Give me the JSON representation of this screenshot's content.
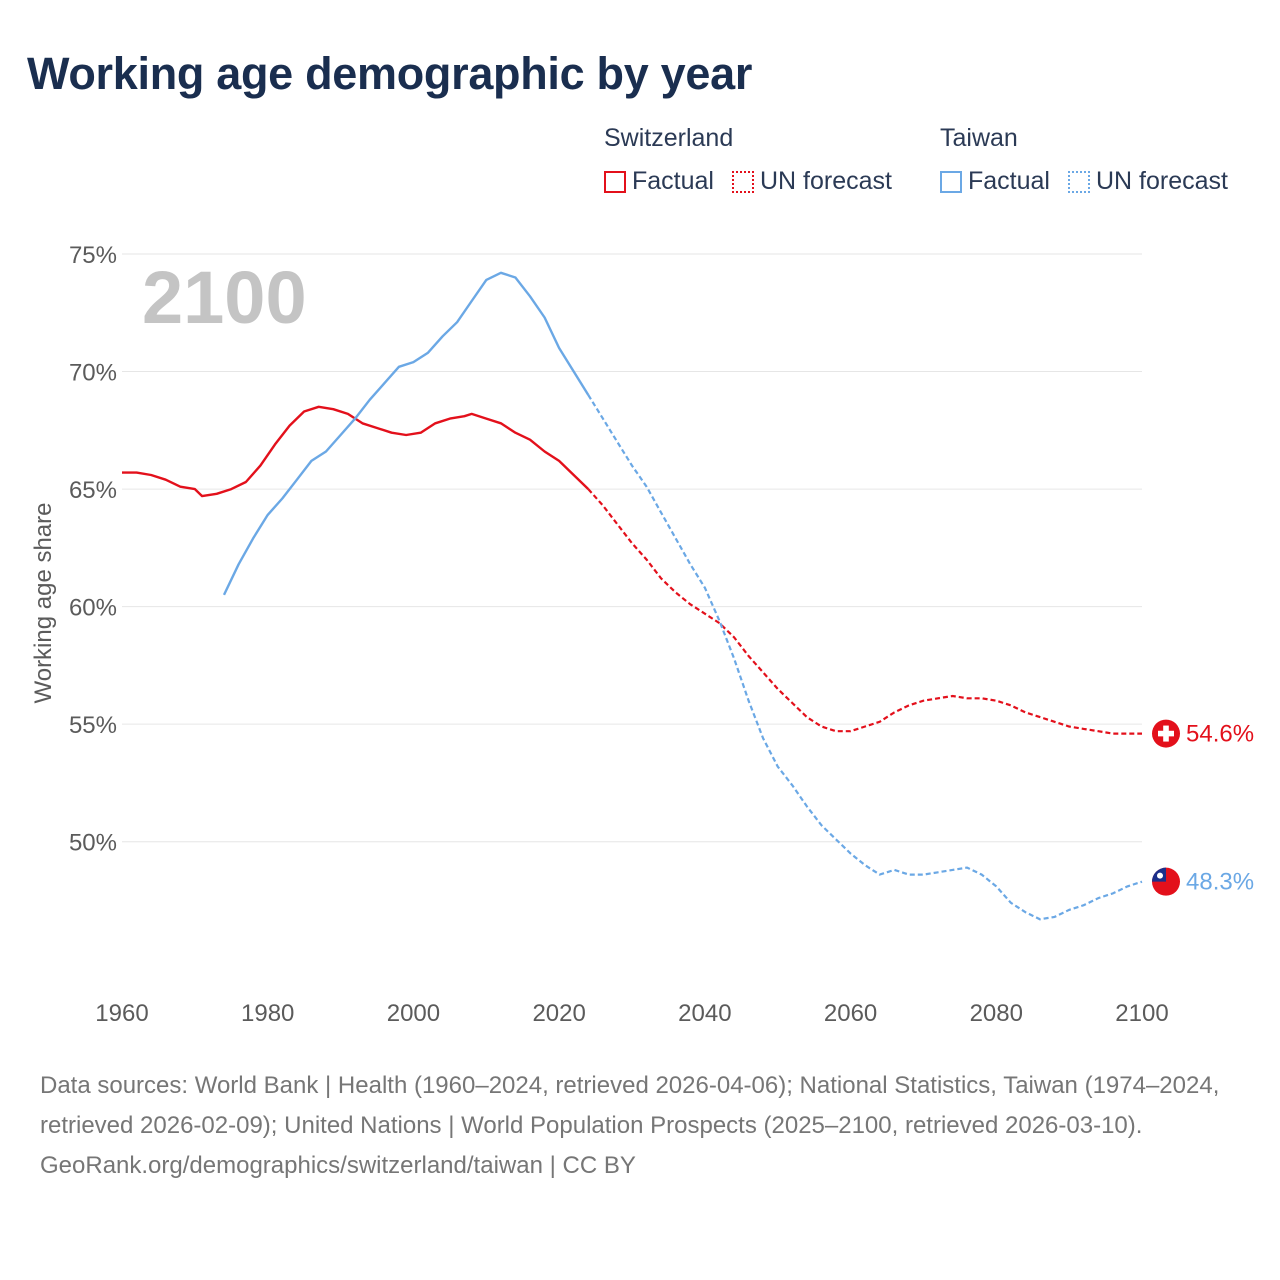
{
  "title": "Working age demographic by year",
  "legend": {
    "switzerland": {
      "title": "Switzerland",
      "factual": "Factual",
      "forecast": "UN forecast"
    },
    "taiwan": {
      "title": "Taiwan",
      "factual": "Factual",
      "forecast": "UN forecast"
    }
  },
  "colors": {
    "switzerland": "#e3101b",
    "taiwan": "#6ba8e5",
    "grid": "#e6e6e6",
    "year": "#c4c4c4"
  },
  "chart_data": {
    "type": "line",
    "title": "Working age demographic by year",
    "year_label": "2100",
    "xlabel": "",
    "ylabel": "Working age share",
    "xlim": [
      1960,
      2100
    ],
    "ylim": [
      44.5,
      75
    ],
    "x_ticks": [
      "1960",
      "1980",
      "2000",
      "2020",
      "2040",
      "2060",
      "2080",
      "2100"
    ],
    "y_ticks": [
      "75%",
      "70%",
      "65%",
      "60%",
      "55%",
      "50%"
    ],
    "y_tick_values": [
      75,
      70,
      65,
      60,
      55,
      50
    ],
    "x_tick_values": [
      1960,
      1980,
      2000,
      2020,
      2040,
      2060,
      2080,
      2100
    ],
    "series": [
      {
        "name": "Switzerland",
        "factual": [
          [
            1960,
            65.7
          ],
          [
            1962,
            65.7
          ],
          [
            1964,
            65.6
          ],
          [
            1966,
            65.4
          ],
          [
            1968,
            65.1
          ],
          [
            1970,
            65.0
          ],
          [
            1971,
            64.7
          ],
          [
            1973,
            64.8
          ],
          [
            1975,
            65.0
          ],
          [
            1977,
            65.3
          ],
          [
            1979,
            66.0
          ],
          [
            1981,
            66.9
          ],
          [
            1983,
            67.7
          ],
          [
            1985,
            68.3
          ],
          [
            1987,
            68.5
          ],
          [
            1989,
            68.4
          ],
          [
            1991,
            68.2
          ],
          [
            1993,
            67.8
          ],
          [
            1995,
            67.6
          ],
          [
            1997,
            67.4
          ],
          [
            1999,
            67.3
          ],
          [
            2001,
            67.4
          ],
          [
            2003,
            67.8
          ],
          [
            2005,
            68.0
          ],
          [
            2007,
            68.1
          ],
          [
            2008,
            68.2
          ],
          [
            2010,
            68.0
          ],
          [
            2012,
            67.8
          ],
          [
            2014,
            67.4
          ],
          [
            2016,
            67.1
          ],
          [
            2018,
            66.6
          ],
          [
            2020,
            66.2
          ],
          [
            2022,
            65.6
          ],
          [
            2024,
            65.0
          ]
        ],
        "forecast": [
          [
            2024,
            65.0
          ],
          [
            2026,
            64.3
          ],
          [
            2028,
            63.5
          ],
          [
            2030,
            62.7
          ],
          [
            2032,
            62.0
          ],
          [
            2034,
            61.2
          ],
          [
            2036,
            60.6
          ],
          [
            2038,
            60.1
          ],
          [
            2040,
            59.7
          ],
          [
            2042,
            59.3
          ],
          [
            2044,
            58.7
          ],
          [
            2046,
            57.9
          ],
          [
            2048,
            57.2
          ],
          [
            2050,
            56.5
          ],
          [
            2052,
            55.9
          ],
          [
            2054,
            55.3
          ],
          [
            2056,
            54.9
          ],
          [
            2058,
            54.7
          ],
          [
            2060,
            54.7
          ],
          [
            2062,
            54.9
          ],
          [
            2064,
            55.1
          ],
          [
            2066,
            55.5
          ],
          [
            2068,
            55.8
          ],
          [
            2070,
            56.0
          ],
          [
            2072,
            56.1
          ],
          [
            2074,
            56.2
          ],
          [
            2076,
            56.1
          ],
          [
            2078,
            56.1
          ],
          [
            2080,
            56.0
          ],
          [
            2082,
            55.8
          ],
          [
            2084,
            55.5
          ],
          [
            2086,
            55.3
          ],
          [
            2088,
            55.1
          ],
          [
            2090,
            54.9
          ],
          [
            2092,
            54.8
          ],
          [
            2094,
            54.7
          ],
          [
            2096,
            54.6
          ],
          [
            2098,
            54.6
          ],
          [
            2100,
            54.6
          ]
        ],
        "end_value": 54.6,
        "end_label": "54.6%"
      },
      {
        "name": "Taiwan",
        "factual": [
          [
            1974,
            60.5
          ],
          [
            1976,
            61.8
          ],
          [
            1978,
            62.9
          ],
          [
            1980,
            63.9
          ],
          [
            1982,
            64.6
          ],
          [
            1984,
            65.4
          ],
          [
            1986,
            66.2
          ],
          [
            1988,
            66.6
          ],
          [
            1990,
            67.3
          ],
          [
            1992,
            68.0
          ],
          [
            1994,
            68.8
          ],
          [
            1996,
            69.5
          ],
          [
            1998,
            70.2
          ],
          [
            2000,
            70.4
          ],
          [
            2002,
            70.8
          ],
          [
            2004,
            71.5
          ],
          [
            2006,
            72.1
          ],
          [
            2008,
            73.0
          ],
          [
            2010,
            73.9
          ],
          [
            2012,
            74.2
          ],
          [
            2014,
            74.0
          ],
          [
            2016,
            73.2
          ],
          [
            2018,
            72.3
          ],
          [
            2020,
            71.0
          ],
          [
            2022,
            70.0
          ],
          [
            2024,
            69.0
          ]
        ],
        "forecast": [
          [
            2024,
            69.0
          ],
          [
            2026,
            68.0
          ],
          [
            2028,
            67.0
          ],
          [
            2030,
            66.0
          ],
          [
            2032,
            65.1
          ],
          [
            2034,
            64.0
          ],
          [
            2036,
            62.9
          ],
          [
            2038,
            61.8
          ],
          [
            2040,
            60.8
          ],
          [
            2042,
            59.4
          ],
          [
            2044,
            57.8
          ],
          [
            2046,
            56.0
          ],
          [
            2048,
            54.4
          ],
          [
            2050,
            53.2
          ],
          [
            2052,
            52.4
          ],
          [
            2054,
            51.5
          ],
          [
            2056,
            50.7
          ],
          [
            2058,
            50.1
          ],
          [
            2060,
            49.5
          ],
          [
            2062,
            49.0
          ],
          [
            2064,
            48.6
          ],
          [
            2066,
            48.8
          ],
          [
            2068,
            48.6
          ],
          [
            2070,
            48.6
          ],
          [
            2072,
            48.7
          ],
          [
            2074,
            48.8
          ],
          [
            2076,
            48.9
          ],
          [
            2078,
            48.6
          ],
          [
            2080,
            48.1
          ],
          [
            2082,
            47.4
          ],
          [
            2084,
            47.0
          ],
          [
            2086,
            46.7
          ],
          [
            2088,
            46.8
          ],
          [
            2090,
            47.1
          ],
          [
            2092,
            47.3
          ],
          [
            2094,
            47.6
          ],
          [
            2096,
            47.8
          ],
          [
            2098,
            48.1
          ],
          [
            2100,
            48.3
          ]
        ],
        "end_value": 48.3,
        "end_label": "48.3%"
      }
    ]
  },
  "footer": {
    "sources": "Data sources: World Bank | Health (1960–2024, retrieved 2026-04-06); National Statistics, Taiwan (1974–2024, retrieved 2026-02-09); United Nations | World Population Prospects (2025–2100, retrieved 2026-03-10).",
    "credit": "GeoRank.org/demographics/switzerland/taiwan | CC BY"
  }
}
